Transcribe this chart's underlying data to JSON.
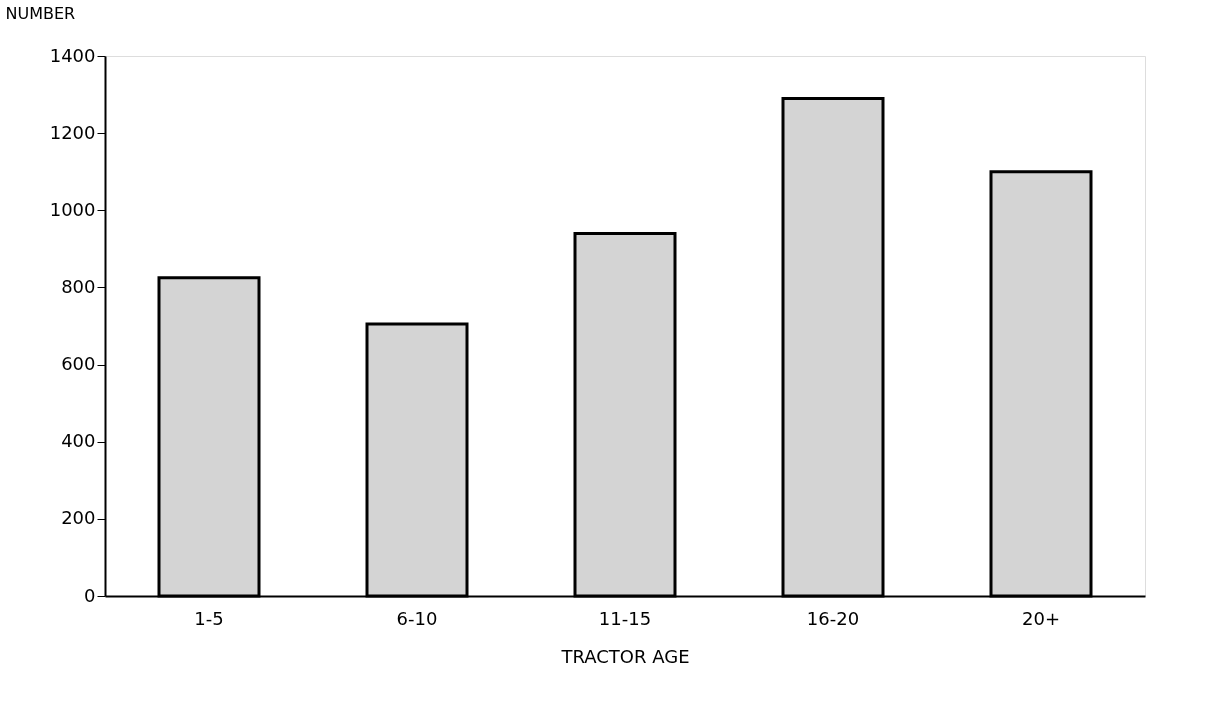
{
  "chart_data": {
    "type": "bar",
    "xlabel": "TRACTOR AGE",
    "ylabel": "NUMBER",
    "categories": [
      "1-5",
      "6-10",
      "11-15",
      "16-20",
      "20+"
    ],
    "values": [
      825,
      705,
      940,
      1290,
      1100
    ],
    "color": "#d4d4d4",
    "ylim": [
      0,
      1400
    ],
    "yticks": [
      0,
      200,
      400,
      600,
      800,
      1000,
      1200,
      1400
    ],
    "grid": false
  }
}
